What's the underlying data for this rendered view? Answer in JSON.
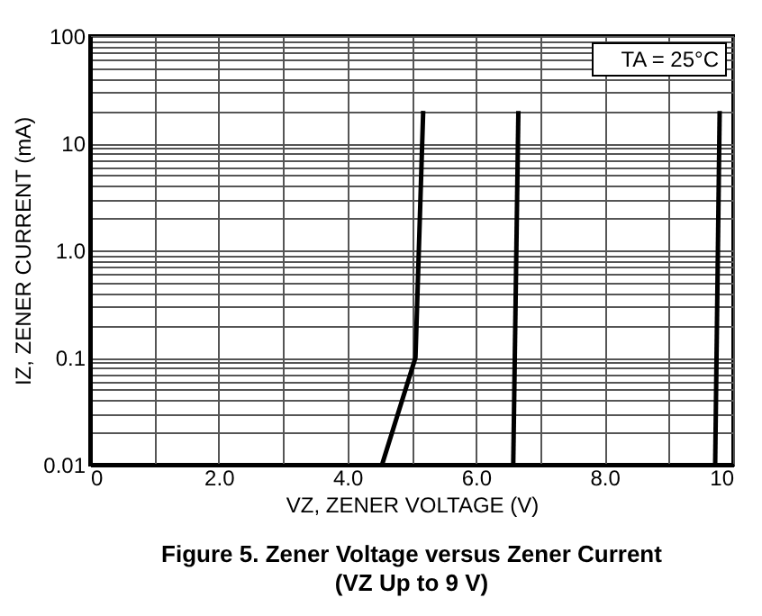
{
  "chart_data": {
    "type": "line",
    "title": "Figure 5. Zener Voltage versus Zener Current",
    "subtitle": "(VZ Up to 9 V)",
    "xlabel": "VZ, ZENER VOLTAGE (V)",
    "ylabel": "IZ, ZENER CURRENT (mA)",
    "annotations": [
      "TA = 25°C"
    ],
    "series": [
      {
        "color": "#000000",
        "x": [
          4.54,
          5.06,
          5.18
        ],
        "values": [
          0.01,
          0.1,
          20
        ]
      },
      {
        "color": "#000000",
        "x": [
          6.58,
          6.66
        ],
        "values": [
          0.01,
          20
        ]
      },
      {
        "color": "#000000",
        "x": [
          9.72,
          9.79
        ],
        "values": [
          0.01,
          20
        ]
      }
    ],
    "xlim": [
      0,
      10
    ],
    "ylim": [
      0.01,
      100
    ],
    "log": "y",
    "grid": true,
    "legend": false,
    "marker": "none",
    "line_style": "solid",
    "xticks": [
      0,
      {
        "value": 1,
        "label": null
      },
      {
        "value": 2,
        "label": "2.0"
      },
      {
        "value": 3,
        "label": null
      },
      {
        "value": 4,
        "label": "4.0"
      },
      {
        "value": 5,
        "label": null
      },
      {
        "value": 6,
        "label": "6.0"
      },
      {
        "value": 7,
        "label": null
      },
      {
        "value": 8,
        "label": "8.0"
      },
      {
        "value": 9,
        "label": null
      },
      10
    ],
    "yticks": [
      0.01,
      {
        "value": 0.02,
        "label": null
      },
      {
        "value": 0.03,
        "label": null
      },
      {
        "value": 0.04,
        "label": null
      },
      {
        "value": 0.05,
        "label": null
      },
      {
        "value": 0.06,
        "label": null
      },
      {
        "value": 0.07,
        "label": null
      },
      {
        "value": 0.08,
        "label": null
      },
      {
        "value": 0.09,
        "label": null
      },
      0.1,
      {
        "value": 0.2,
        "label": null
      },
      {
        "value": 0.3,
        "label": null
      },
      {
        "value": 0.4,
        "label": null
      },
      {
        "value": 0.5,
        "label": null
      },
      {
        "value": 0.6,
        "label": null
      },
      {
        "value": 0.7,
        "label": null
      },
      {
        "value": 0.8,
        "label": null
      },
      {
        "value": 0.9,
        "label": null
      },
      {
        "value": 1,
        "label": "1.0"
      },
      {
        "value": 2,
        "label": null
      },
      {
        "value": 3,
        "label": null
      },
      {
        "value": 4,
        "label": null
      },
      {
        "value": 5,
        "label": null
      },
      {
        "value": 6,
        "label": null
      },
      {
        "value": 7,
        "label": null
      },
      {
        "value": 8,
        "label": null
      },
      {
        "value": 9,
        "label": null
      },
      10,
      {
        "value": 20,
        "label": null
      },
      {
        "value": 30,
        "label": null
      },
      {
        "value": 40,
        "label": null
      },
      {
        "value": 50,
        "label": null
      },
      {
        "value": 60,
        "label": null
      },
      {
        "value": 70,
        "label": null
      },
      {
        "value": 80,
        "label": null
      },
      {
        "value": 90,
        "label": null
      },
      100
    ]
  }
}
